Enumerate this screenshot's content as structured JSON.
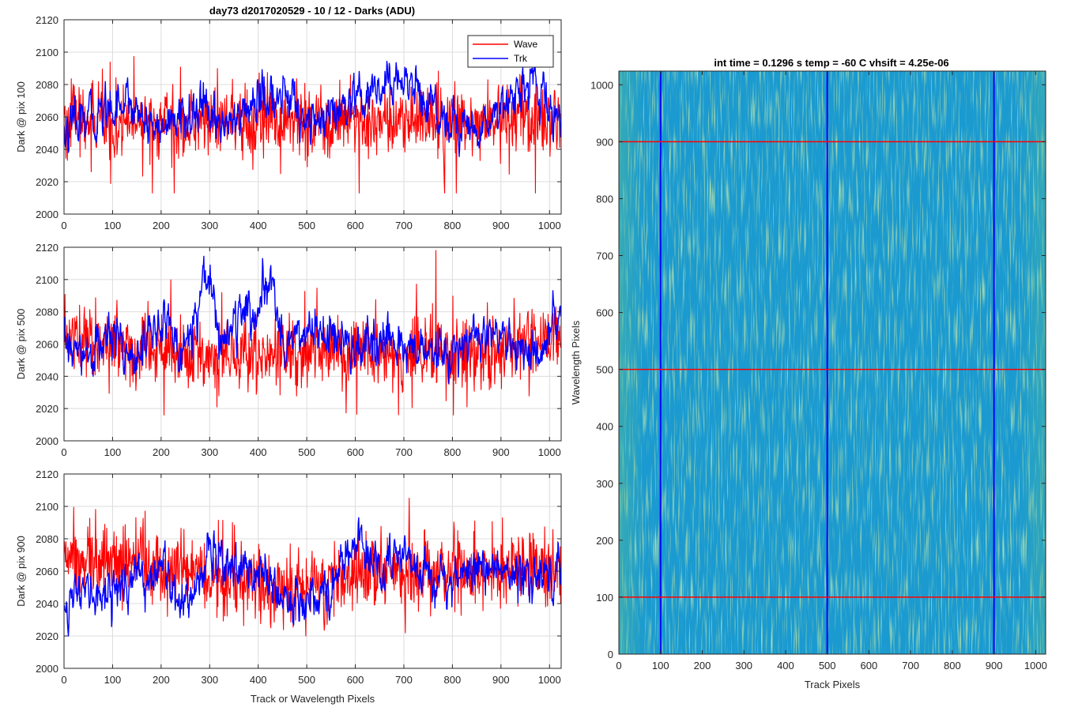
{
  "colors": {
    "wave": "#ff0000",
    "trk": "#0000ff",
    "grid": "#dcdcdc",
    "axis": "#262626",
    "image_base": "#1a9ad0",
    "image_streak": "#8fcf60"
  },
  "chart_data": [
    {
      "type": "line",
      "title": "day73 d2017020529 - 10 / 12 - Darks (ADU)",
      "xlabel": "",
      "ylabel": "Dark @ pix 100",
      "xlim": [
        0,
        1024
      ],
      "ylim": [
        2000,
        2120
      ],
      "xticks": [
        0,
        100,
        200,
        300,
        400,
        500,
        600,
        700,
        800,
        900,
        1000
      ],
      "yticks": [
        2000,
        2020,
        2040,
        2060,
        2080,
        2100,
        2120
      ],
      "grid": true,
      "legend": "top-right",
      "series": [
        {
          "name": "Wave",
          "color": "#ff0000",
          "x_range": [
            0,
            1023
          ],
          "mean": 2058,
          "noise": 13,
          "peak_min": 2013,
          "peak_max": 2100,
          "anchors": [
            [
              0,
              2058
            ],
            [
              200,
              2057
            ],
            [
              400,
              2057
            ],
            [
              600,
              2056
            ],
            [
              800,
              2058
            ],
            [
              1023,
              2060
            ]
          ]
        },
        {
          "name": "Trk",
          "color": "#0000ff",
          "x_range": [
            0,
            1023
          ],
          "mean": 2058,
          "noise": 6,
          "peak_min": 2024,
          "peak_max": 2101,
          "anchors": [
            [
              0,
              2050
            ],
            [
              50,
              2058
            ],
            [
              120,
              2072
            ],
            [
              200,
              2052
            ],
            [
              270,
              2064
            ],
            [
              350,
              2055
            ],
            [
              390,
              2070
            ],
            [
              460,
              2072
            ],
            [
              520,
              2055
            ],
            [
              600,
              2066
            ],
            [
              700,
              2085
            ],
            [
              780,
              2060
            ],
            [
              850,
              2050
            ],
            [
              920,
              2075
            ],
            [
              960,
              2080
            ],
            [
              1023,
              2056
            ]
          ]
        }
      ]
    },
    {
      "type": "line",
      "title": "",
      "xlabel": "",
      "ylabel": "Dark @ pix 500",
      "xlim": [
        0,
        1024
      ],
      "ylim": [
        2000,
        2120
      ],
      "xticks": [
        0,
        100,
        200,
        300,
        400,
        500,
        600,
        700,
        800,
        900,
        1000
      ],
      "yticks": [
        2000,
        2020,
        2040,
        2060,
        2080,
        2100,
        2120
      ],
      "grid": true,
      "series": [
        {
          "name": "Wave",
          "color": "#ff0000",
          "x_range": [
            0,
            1023
          ],
          "mean": 2055,
          "noise": 13,
          "peak_min": 2016,
          "peak_max": 2118,
          "anchors": [
            [
              0,
              2065
            ],
            [
              200,
              2055
            ],
            [
              400,
              2052
            ],
            [
              600,
              2054
            ],
            [
              800,
              2056
            ],
            [
              1023,
              2062
            ]
          ]
        },
        {
          "name": "Trk",
          "color": "#0000ff",
          "x_range": [
            0,
            1023
          ],
          "mean": 2060,
          "noise": 6,
          "peak_min": 2030,
          "peak_max": 2116,
          "anchors": [
            [
              0,
              2060
            ],
            [
              40,
              2050
            ],
            [
              100,
              2065
            ],
            [
              150,
              2055
            ],
            [
              210,
              2075
            ],
            [
              240,
              2052
            ],
            [
              270,
              2080
            ],
            [
              295,
              2110
            ],
            [
              320,
              2062
            ],
            [
              360,
              2075
            ],
            [
              400,
              2080
            ],
            [
              430,
              2097
            ],
            [
              455,
              2060
            ],
            [
              520,
              2070
            ],
            [
              560,
              2062
            ],
            [
              600,
              2055
            ],
            [
              700,
              2060
            ],
            [
              780,
              2050
            ],
            [
              850,
              2065
            ],
            [
              920,
              2060
            ],
            [
              980,
              2050
            ],
            [
              1023,
              2078
            ]
          ]
        }
      ]
    },
    {
      "type": "line",
      "title": "",
      "xlabel": "Track or Wavelength Pixels",
      "ylabel": "Dark @ pix 900",
      "xlim": [
        0,
        1024
      ],
      "ylim": [
        2000,
        2120
      ],
      "xticks": [
        0,
        100,
        200,
        300,
        400,
        500,
        600,
        700,
        800,
        900,
        1000
      ],
      "yticks": [
        2000,
        2020,
        2040,
        2060,
        2080,
        2100,
        2120
      ],
      "grid": true,
      "series": [
        {
          "name": "Wave",
          "color": "#ff0000",
          "x_range": [
            0,
            1023
          ],
          "mean": 2060,
          "noise": 13,
          "peak_min": 2020,
          "peak_max": 2107,
          "anchors": [
            [
              0,
              2068
            ],
            [
              150,
              2065
            ],
            [
              300,
              2058
            ],
            [
              450,
              2048
            ],
            [
              600,
              2058
            ],
            [
              800,
              2060
            ],
            [
              1023,
              2062
            ]
          ]
        },
        {
          "name": "Trk",
          "color": "#0000ff",
          "x_range": [
            0,
            1023
          ],
          "mean": 2052,
          "noise": 6,
          "peak_min": 2020,
          "peak_max": 2093,
          "anchors": [
            [
              0,
              2042
            ],
            [
              100,
              2048
            ],
            [
              200,
              2060
            ],
            [
              250,
              2040
            ],
            [
              300,
              2072
            ],
            [
              400,
              2058
            ],
            [
              450,
              2042
            ],
            [
              550,
              2048
            ],
            [
              600,
              2080
            ],
            [
              650,
              2060
            ],
            [
              700,
              2068
            ],
            [
              800,
              2055
            ],
            [
              870,
              2065
            ],
            [
              950,
              2055
            ],
            [
              1000,
              2060
            ],
            [
              1023,
              2070
            ]
          ]
        }
      ]
    },
    {
      "type": "heatmap",
      "title": "int time = 0.1296 s    temp = -60 C    vhsift = 4.25e-06",
      "xlabel": "Track Pixels",
      "ylabel": "Wavelength Pixels",
      "xlim": [
        0,
        1024
      ],
      "ylim": [
        0,
        1024
      ],
      "xticks": [
        0,
        100,
        200,
        300,
        400,
        500,
        600,
        700,
        800,
        900,
        1000
      ],
      "yticks": [
        0,
        100,
        200,
        300,
        400,
        500,
        600,
        700,
        800,
        900,
        1000
      ],
      "vertical_lines": [
        100,
        500,
        900
      ],
      "vertical_line_color": "#0000ff",
      "horizontal_lines": [
        100,
        500,
        900
      ],
      "horizontal_line_color": "#ff0000"
    }
  ]
}
